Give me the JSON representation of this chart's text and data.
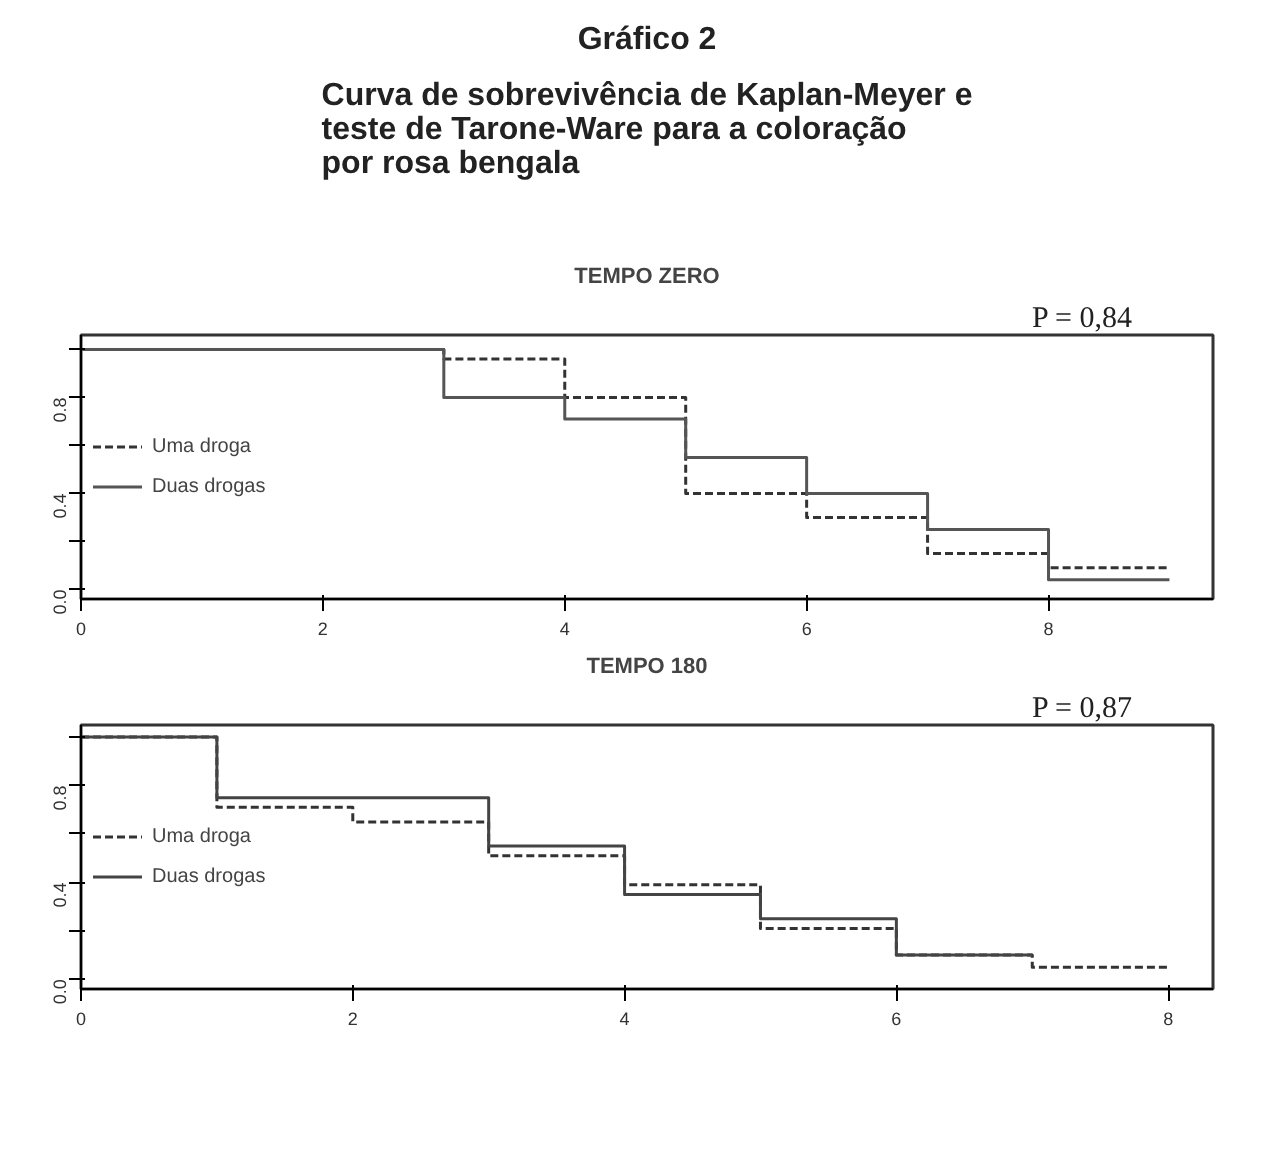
{
  "chart_data": [
    {
      "type": "other",
      "title": "Gráfico 2",
      "subtitle": "Curva de sobrevivência de Kaplan-Meyer e teste de Tarone-Ware para a coloração por rosa bengala"
    },
    {
      "type": "step",
      "title": "TEMPO ZERO",
      "annotations": [
        "P = 0,84"
      ],
      "xlim": [
        0,
        9.36
      ],
      "ylim": [
        -0.04,
        1.06
      ],
      "xticks": [
        0,
        2,
        4,
        6,
        8
      ],
      "yticks": [
        "0.0",
        {
          "value": 0.2,
          "label": null
        },
        {
          "value": 0.4,
          "label": "0.4"
        },
        {
          "value": 0.6,
          "label": null
        },
        {
          "value": 0.8,
          "label": "0.8"
        },
        {
          "value": 1.0,
          "label": null
        }
      ],
      "grid": false,
      "legend": "left",
      "marker": "none",
      "series": [
        {
          "name": "Uma droga",
          "color": "#333333",
          "line_style": "dashed",
          "x": [
            0,
            3,
            4,
            5,
            6,
            7,
            8,
            9
          ],
          "values": [
            1.0,
            0.96,
            0.8,
            0.4,
            0.3,
            0.15,
            0.09,
            0.09
          ]
        },
        {
          "name": "Duas drogas",
          "color": "#555555",
          "line_style": "solid",
          "x": [
            0,
            3,
            4,
            5,
            6,
            7,
            8,
            9
          ],
          "values": [
            1.0,
            0.8,
            0.71,
            0.55,
            0.4,
            0.25,
            0.04,
            0.04
          ]
        }
      ]
    },
    {
      "type": "step",
      "title": "TEMPO 180",
      "annotations": [
        "P = 0,87"
      ],
      "xlim": [
        0,
        8.33
      ],
      "ylim": [
        -0.04,
        1.05
      ],
      "xticks": [
        0,
        2,
        4,
        6,
        8
      ],
      "yticks": [
        "0.0",
        {
          "value": 0.2,
          "label": null
        },
        {
          "value": 0.4,
          "label": "0.4"
        },
        {
          "value": 0.6,
          "label": null
        },
        {
          "value": 0.8,
          "label": "0.8"
        },
        {
          "value": 1.0,
          "label": null
        }
      ],
      "grid": false,
      "legend": "left",
      "marker": "none",
      "series": [
        {
          "name": "Uma droga",
          "color": "#333333",
          "line_style": "dashed",
          "x": [
            0,
            1,
            2,
            3,
            4,
            5,
            6,
            7,
            8
          ],
          "values": [
            1.0,
            0.71,
            0.65,
            0.51,
            0.39,
            0.21,
            0.1,
            0.05,
            0.05
          ]
        },
        {
          "name": "Duas drogas",
          "color": "#444444",
          "line_style": "solid",
          "x": [
            0,
            1,
            3,
            4,
            5,
            6,
            7
          ],
          "values": [
            1.0,
            0.75,
            0.55,
            0.35,
            0.25,
            0.1,
            0.1
          ]
        }
      ]
    }
  ]
}
